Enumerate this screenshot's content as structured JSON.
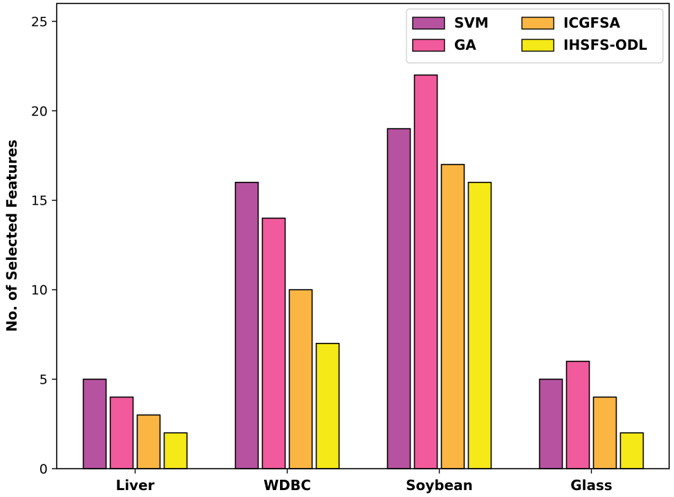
{
  "chart_data": {
    "type": "bar",
    "title": "",
    "xlabel": "",
    "ylabel": "No. of Selected Features",
    "ylim": [
      0,
      26
    ],
    "yticks": [
      0,
      5,
      10,
      15,
      20,
      25
    ],
    "categories": [
      "Liver",
      "WDBC",
      "Soybean",
      "Glass"
    ],
    "series": [
      {
        "name": "SVM",
        "color": "#b6529f",
        "values": [
          5,
          16,
          19,
          5
        ]
      },
      {
        "name": "GA",
        "color": "#f15a9c",
        "values": [
          4,
          14,
          22,
          6
        ]
      },
      {
        "name": "ICGFSA",
        "color": "#fbb543",
        "values": [
          3,
          10,
          17,
          4
        ]
      },
      {
        "name": "IHSFS-ODL",
        "color": "#f5e917",
        "values": [
          2,
          7,
          16,
          2
        ]
      }
    ],
    "legend": {
      "position": "top-right",
      "columns": 2
    },
    "grid": false
  }
}
